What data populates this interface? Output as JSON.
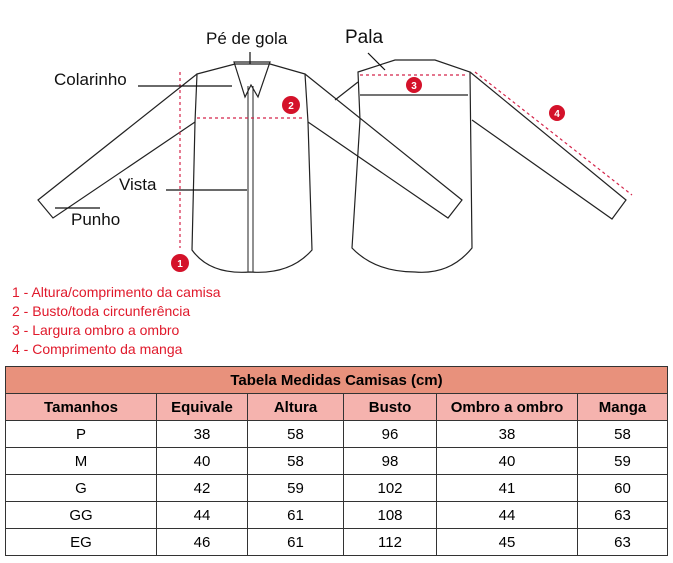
{
  "labels": {
    "pe_de_gola": "Pé de gola",
    "pala": "Pala",
    "colarinho": "Colarinho",
    "vista": "Vista",
    "punho": "Punho"
  },
  "markers": [
    "1",
    "2",
    "3",
    "4"
  ],
  "legend": [
    "1 - Altura/comprimento da camisa",
    "2 - Busto/toda circunferência",
    "3 - Largura ombro a ombro",
    "4 - Comprimento da manga"
  ],
  "colors": {
    "accent": "#e0192b",
    "title_bg": "#e8917c",
    "header_bg": "#f5b3ae"
  },
  "table": {
    "title": "Tabela Medidas Camisas (cm)",
    "headers": [
      "Tamanhos",
      "Equivale",
      "Altura",
      "Busto",
      "Ombro a ombro",
      "Manga"
    ],
    "rows": [
      [
        "P",
        "38",
        "58",
        "96",
        "38",
        "58"
      ],
      [
        "M",
        "40",
        "58",
        "98",
        "40",
        "59"
      ],
      [
        "G",
        "42",
        "59",
        "102",
        "41",
        "60"
      ],
      [
        "GG",
        "44",
        "61",
        "108",
        "44",
        "63"
      ],
      [
        "EG",
        "46",
        "61",
        "112",
        "45",
        "63"
      ]
    ]
  }
}
